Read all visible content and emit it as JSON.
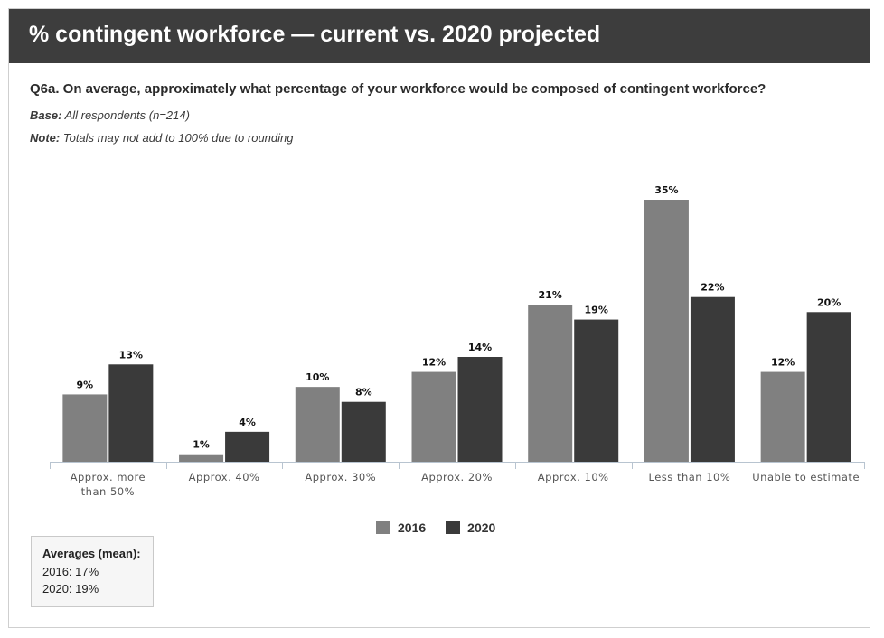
{
  "header": {
    "title": "% contingent workforce — current vs. 2020 projected",
    "question": "Q6a. On average, approximately what percentage of your workforce would be composed of contingent workforce?",
    "base_label": "Base:",
    "base_text": "All respondents (n=214)",
    "note_label": "Note:",
    "note_text": "Totals may not add to 100% due to rounding"
  },
  "averages": {
    "title": "Averages (mean):",
    "line_2016": "2016: 17%",
    "line_2020": "2020: 19%"
  },
  "colors": {
    "series_2016": "#808080",
    "series_2020": "#3a3a3a",
    "header_bg": "#3d3d3d"
  },
  "chart_data": {
    "type": "bar",
    "categories": [
      [
        "Approx. more",
        "than 50%"
      ],
      [
        "Approx. 40%"
      ],
      [
        "Approx. 30%"
      ],
      [
        "Approx. 20%"
      ],
      [
        "Approx. 10%"
      ],
      [
        "Less than 10%"
      ],
      [
        "Unable to estimate"
      ]
    ],
    "series": [
      {
        "name": "2016",
        "values": [
          9,
          1,
          10,
          12,
          21,
          35,
          12
        ],
        "labels": [
          "9%",
          "1%",
          "10%",
          "12%",
          "21%",
          "35%",
          "12%"
        ]
      },
      {
        "name": "2020",
        "values": [
          13,
          4,
          8,
          14,
          19,
          22,
          20
        ],
        "labels": [
          "13%",
          "4%",
          "8%",
          "14%",
          "19%",
          "22%",
          "20%"
        ]
      }
    ],
    "ylim": [
      0,
      35
    ],
    "legend": "bottom-center",
    "grid": false
  }
}
